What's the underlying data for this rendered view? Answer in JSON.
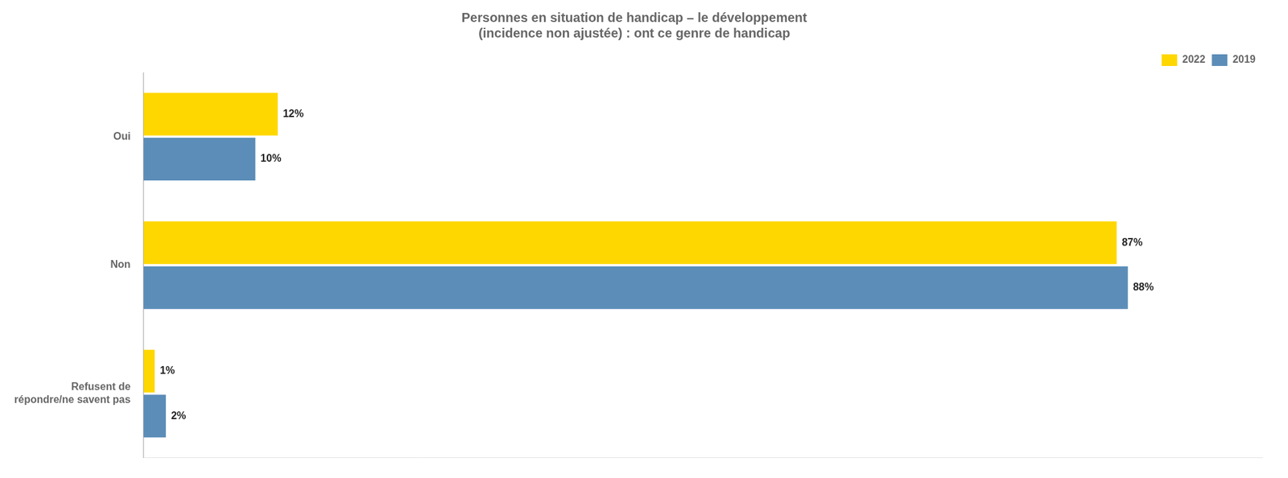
{
  "chart_data": {
    "type": "bar",
    "orientation": "horizontal",
    "title": "Personnes en situation de handicap – le développement\n(incidence non ajustée) : ont ce genre de handicap",
    "categories": [
      "Refusent de\nrépondre/ne savent pas",
      "Non",
      "Oui"
    ],
    "series": [
      {
        "name": "2022",
        "color": "#FFD700",
        "values": [
          1,
          87,
          12
        ],
        "value_labels": [
          "1%",
          "87%",
          "12%"
        ]
      },
      {
        "name": "2019",
        "color": "#5B8DB8",
        "values": [
          2,
          88,
          10
        ],
        "value_labels": [
          "2%",
          "88%",
          "10%"
        ]
      }
    ],
    "xlim": [
      0,
      100
    ],
    "xticks": [],
    "grid": false,
    "legend": "upper right",
    "data_labels": true,
    "tick_labels": "y"
  }
}
